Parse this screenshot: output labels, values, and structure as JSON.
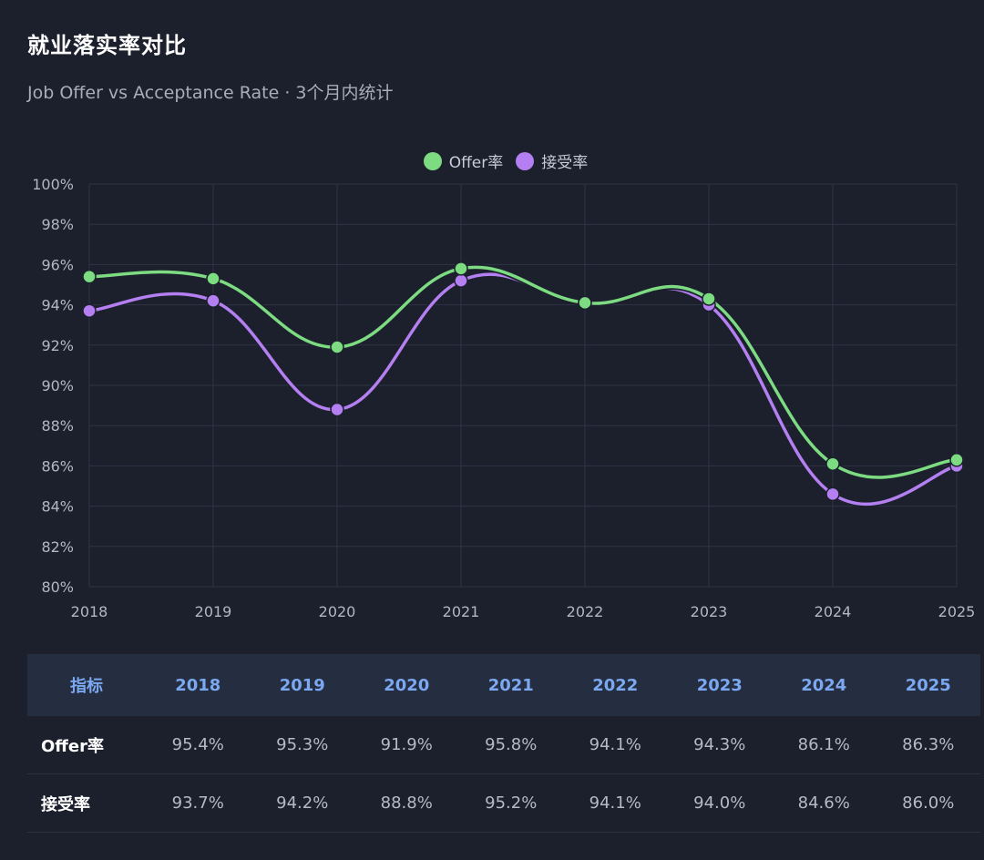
{
  "title": "就业落实率对比",
  "subtitle": "Job Offer vs Acceptance Rate · 3个月内统计",
  "chart_data": {
    "type": "line",
    "title": "就业落实率对比",
    "subtitle": "Job Offer vs Acceptance Rate · 3个月内统计",
    "categories": [
      "2018",
      "2019",
      "2020",
      "2021",
      "2022",
      "2023",
      "2024",
      "2025"
    ],
    "ylim": [
      80,
      100
    ],
    "yticks": [
      80,
      82,
      84,
      86,
      88,
      90,
      92,
      94,
      96,
      98,
      100
    ],
    "ytick_labels": [
      "80%",
      "82%",
      "84%",
      "86%",
      "88%",
      "90%",
      "92%",
      "94%",
      "96%",
      "98%",
      "100%"
    ],
    "grid": true,
    "legend_position": "top-center",
    "series": [
      {
        "name": "Offer率",
        "color": "#7ddb82",
        "values": [
          95.4,
          95.3,
          91.9,
          95.8,
          94.1,
          94.3,
          86.1,
          86.3
        ]
      },
      {
        "name": "接受率",
        "color": "#b47ff0",
        "values": [
          93.7,
          94.2,
          88.8,
          95.2,
          94.1,
          94.0,
          84.6,
          86.0
        ]
      }
    ]
  },
  "table": {
    "header_label": "指标",
    "columns": [
      "2018",
      "2019",
      "2020",
      "2021",
      "2022",
      "2023",
      "2024",
      "2025"
    ],
    "rows": [
      {
        "label": "Offer率",
        "cells": [
          "95.4%",
          "95.3%",
          "91.9%",
          "95.8%",
          "94.1%",
          "94.3%",
          "86.1%",
          "86.3%"
        ]
      },
      {
        "label": "接受率",
        "cells": [
          "93.7%",
          "94.2%",
          "88.8%",
          "95.2%",
          "94.1%",
          "94.0%",
          "84.6%",
          "86.0%"
        ]
      }
    ]
  }
}
